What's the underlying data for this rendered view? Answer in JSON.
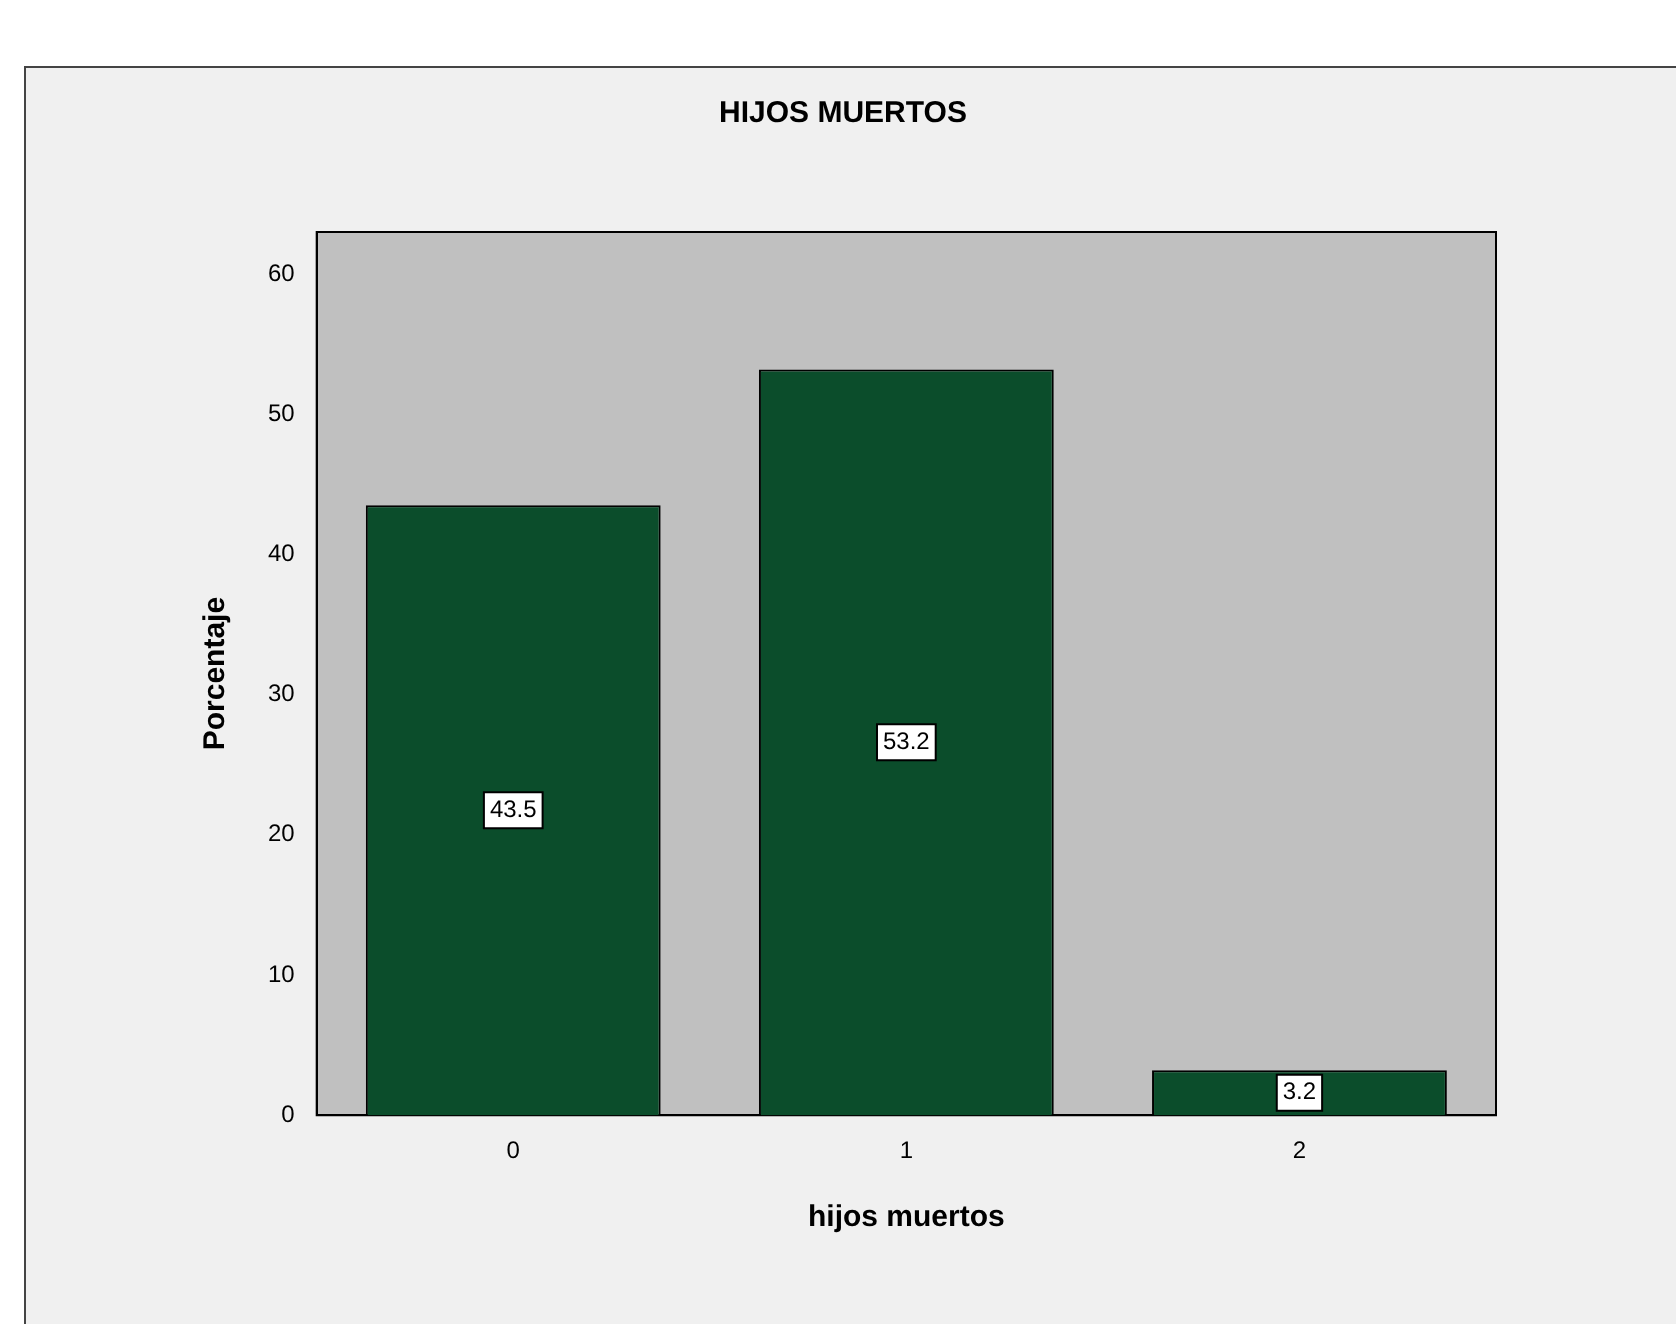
{
  "chart_data": {
    "type": "bar",
    "title": "HIJOS MUERTOS",
    "xlabel": "hijos muertos",
    "ylabel": "Porcentaje",
    "categories": [
      "0",
      "1",
      "2"
    ],
    "values": [
      43.5,
      53.2,
      3.2
    ],
    "color": "#0b4d2b",
    "ylim": [
      0,
      63
    ],
    "yticks": [
      0,
      10,
      20,
      30,
      40,
      50,
      60
    ],
    "grid": false,
    "legend": false,
    "data_labels": true
  }
}
